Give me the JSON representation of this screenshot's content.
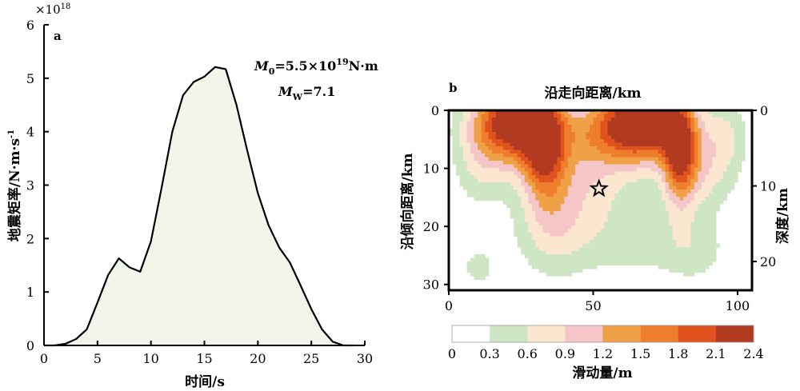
{
  "chart_data": [
    {
      "type": "area",
      "panel_label": "a",
      "xlabel": "时间/s",
      "ylabel": "地震矩率/N·m·s⁻¹",
      "ylabel_parts": [
        "地震矩率/N",
        "m",
        "s"
      ],
      "ylabel_sup": "-1",
      "y_multiplier_base": "×10",
      "y_multiplier_exp": "18",
      "xlim": [
        0,
        30
      ],
      "ylim": [
        0,
        6
      ],
      "xticks": [
        "0",
        "5",
        "10",
        "15",
        "20",
        "25",
        "30"
      ],
      "yticks": [
        "0",
        "1",
        "2",
        "3",
        "4",
        "5",
        "6"
      ],
      "fill_color": "#f2f6ea",
      "line_color": "#000000",
      "x": [
        0,
        1,
        2,
        3,
        4,
        5,
        6,
        7,
        8,
        9,
        10,
        11,
        12,
        13,
        14,
        15,
        16,
        17,
        18,
        19,
        20,
        21,
        22,
        23,
        24,
        25,
        26,
        27,
        28,
        29
      ],
      "y": [
        0,
        0,
        0.03,
        0.12,
        0.3,
        0.8,
        1.32,
        1.63,
        1.46,
        1.38,
        1.95,
        2.95,
        4.0,
        4.68,
        4.93,
        5.03,
        5.21,
        5.17,
        4.5,
        3.65,
        2.85,
        2.25,
        1.83,
        1.55,
        1.12,
        0.68,
        0.3,
        0.07,
        0,
        0
      ],
      "annotation_m0": {
        "symbol": "M",
        "sub": "0",
        "text": "=5.5×10",
        "sup": "19",
        "unit": "N",
        "unit2": "m"
      },
      "annotation_mw": {
        "symbol": "M",
        "sub": "W",
        "text": "=7.1"
      }
    },
    {
      "type": "heatmap",
      "panel_label": "b",
      "title": "沿走向距离/km",
      "ylabel": "沿倾向距离/km",
      "ylabel_right": "深度/km",
      "xlim": [
        0,
        105
      ],
      "ylim": [
        0,
        31
      ],
      "xticks": [
        "0",
        "50",
        "100"
      ],
      "yticks": [
        "0",
        "10",
        "20",
        "30"
      ],
      "depth_ticks": [
        "0",
        "10",
        "20"
      ],
      "hypocenter": {
        "x": 52,
        "y": 13.5
      },
      "colorbar_label": "滑动量/m",
      "colorbar_ticks": [
        "0",
        "0.3",
        "0.6",
        "0.9",
        "1.2",
        "1.5",
        "1.8",
        "2.1",
        "2.4"
      ],
      "levels": [
        0,
        0.3,
        0.6,
        0.9,
        1.2,
        1.5,
        1.8,
        2.1,
        2.4
      ],
      "colors": [
        "#ffffff",
        "#cfe6c4",
        "#fbe6cf",
        "#f5c6c8",
        "#f0a047",
        "#ee7d2c",
        "#e0521e",
        "#b23a21"
      ],
      "slip_patches": [
        {
          "x": 22,
          "y": 2,
          "sx": 10,
          "sy": 5,
          "amp": 2.5
        },
        {
          "x": 33,
          "y": 6,
          "sx": 5,
          "sy": 6,
          "amp": 1.6
        },
        {
          "x": 68,
          "y": 1.5,
          "sx": 11,
          "sy": 5,
          "amp": 2.45
        },
        {
          "x": 80,
          "y": 8,
          "sx": 4,
          "sy": 6,
          "amp": 1.6
        },
        {
          "x": 52,
          "y": 4,
          "sx": 14,
          "sy": 4,
          "amp": 0.85
        },
        {
          "x": 45,
          "y": 12,
          "sx": 13,
          "sy": 5,
          "amp": 0.65
        },
        {
          "x": 88,
          "y": 10,
          "sx": 8,
          "sy": 5,
          "amp": 0.75
        },
        {
          "x": 10,
          "y": 10,
          "sx": 6,
          "sy": 5,
          "amp": 0.45
        },
        {
          "x": 36,
          "y": 20,
          "sx": 9,
          "sy": 6,
          "amp": 0.72
        },
        {
          "x": 62,
          "y": 22,
          "sx": 14,
          "sy": 5,
          "amp": 0.45
        },
        {
          "x": 85,
          "y": 24,
          "sx": 8,
          "sy": 4,
          "amp": 0.42
        },
        {
          "x": 10,
          "y": 27,
          "sx": 5,
          "sy": 3,
          "amp": 0.38
        },
        {
          "x": 97,
          "y": 4,
          "sx": 5,
          "sy": 4,
          "amp": 0.45
        }
      ]
    }
  ]
}
